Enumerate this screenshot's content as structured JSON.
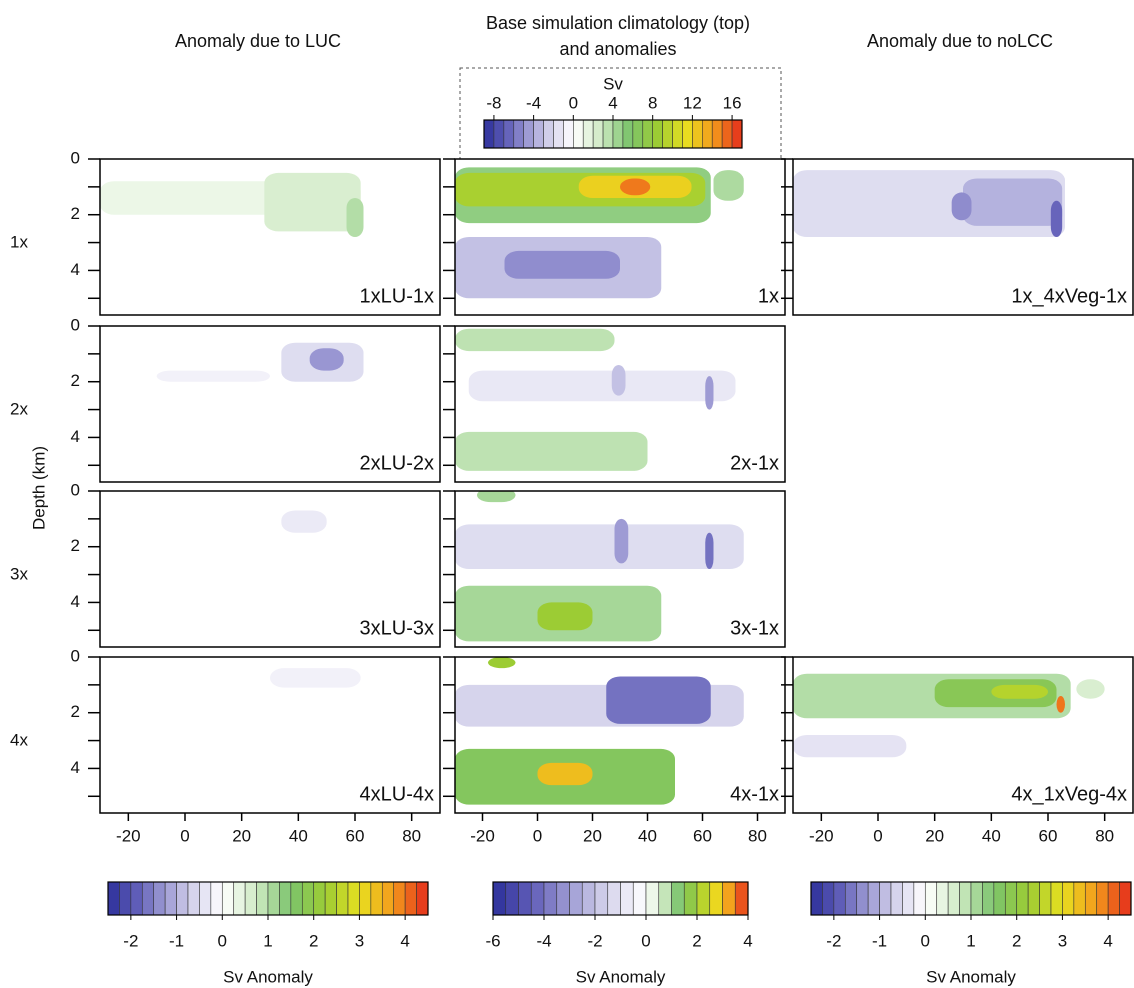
{
  "chart_data": {
    "type": "contour",
    "column_titles": [
      "Anomaly due to LUC",
      "Base simulation climatology (top)",
      "and anomalies",
      "Anomaly due to noLCC"
    ],
    "row_labels": [
      "1x",
      "2x",
      "3x",
      "4x"
    ],
    "y_label": "Depth (km)",
    "xlim": [
      -30,
      90
    ],
    "xticks": [
      -20,
      0,
      20,
      40,
      60,
      80
    ],
    "ylim": [
      0,
      5.6
    ],
    "yticks": [
      0,
      2,
      4
    ],
    "yminor_ticks": [
      1,
      3,
      5
    ],
    "negative_colors": [
      "#ffffff",
      "#d6d4ec",
      "#9e9bd4",
      "#5f5db8",
      "#2c2f9a"
    ],
    "positive_colors": [
      "#ffffff",
      "#cfeac4",
      "#7cc46c",
      "#9ccc34",
      "#e8e020",
      "#f49a1c",
      "#e42a1c"
    ],
    "colorbars": [
      {
        "label": "Sv Anomaly",
        "lim": [
          -2.5,
          4.5
        ],
        "ticks": [
          -2,
          -1,
          0,
          1,
          2,
          3,
          4
        ],
        "step": 0.25
      },
      {
        "label": "Sv Anomaly",
        "lim": [
          -6,
          4
        ],
        "ticks": [
          -6,
          -4,
          -2,
          0,
          2,
          4
        ],
        "step": 0.5
      },
      {
        "label": "Sv Anomaly",
        "lim": [
          -2.5,
          4.5
        ],
        "ticks": [
          -2,
          -1,
          0,
          1,
          2,
          3,
          4
        ],
        "step": 0.25
      },
      {
        "label": "Sv",
        "lim": [
          -9,
          17
        ],
        "ticks": [
          -8,
          -4,
          0,
          4,
          8,
          12,
          16
        ],
        "step": 1
      }
    ],
    "panels": [
      {
        "label": "1xLU-1x",
        "column": 0,
        "row": 0,
        "scale": 0,
        "regions": [
          {
            "x": [
              -30,
              62
            ],
            "y": [
              0.8,
              2.0
            ],
            "value": 0.3
          },
          {
            "x": [
              28,
              62
            ],
            "y": [
              0.5,
              2.6
            ],
            "value": 0.6
          },
          {
            "x": [
              57,
              63
            ],
            "y": [
              1.4,
              2.8
            ],
            "value": 1
          }
        ]
      },
      {
        "label": "1x",
        "column": 1,
        "row": 0,
        "scale": 3,
        "regions": [
          {
            "x": [
              -30,
              63
            ],
            "y": [
              0.3,
              2.3
            ],
            "value": 5
          },
          {
            "x": [
              -30,
              61
            ],
            "y": [
              0.5,
              1.7
            ],
            "value": 9
          },
          {
            "x": [
              15,
              56
            ],
            "y": [
              0.6,
              1.4
            ],
            "value": 12
          },
          {
            "x": [
              30,
              41
            ],
            "y": [
              0.7,
              1.3
            ],
            "value": 15
          },
          {
            "x": [
              64,
              75
            ],
            "y": [
              0.4,
              1.5
            ],
            "value": 4
          },
          {
            "x": [
              -30,
              45
            ],
            "y": [
              2.8,
              5.0
            ],
            "value": -3
          },
          {
            "x": [
              -12,
              30
            ],
            "y": [
              3.3,
              4.3
            ],
            "value": -5
          }
        ]
      },
      {
        "label": "1x_4xVeg-1x",
        "column": 2,
        "row": 0,
        "scale": 2,
        "regions": [
          {
            "x": [
              -30,
              66
            ],
            "y": [
              0.4,
              2.8
            ],
            "value": -0.5
          },
          {
            "x": [
              30,
              65
            ],
            "y": [
              0.7,
              2.4
            ],
            "value": -1
          },
          {
            "x": [
              26,
              33
            ],
            "y": [
              1.2,
              2.2
            ],
            "value": -1.4
          },
          {
            "x": [
              61,
              65
            ],
            "y": [
              1.5,
              2.8
            ],
            "value": -1.8
          }
        ]
      },
      {
        "label": "2xLU-2x",
        "column": 0,
        "row": 1,
        "scale": 0,
        "regions": [
          {
            "x": [
              -10,
              30
            ],
            "y": [
              1.6,
              2.0
            ],
            "value": -0.2
          },
          {
            "x": [
              34,
              63
            ],
            "y": [
              0.6,
              2.0
            ],
            "value": -0.5
          },
          {
            "x": [
              44,
              56
            ],
            "y": [
              0.8,
              1.6
            ],
            "value": -1.3
          }
        ]
      },
      {
        "label": "2x-1x",
        "column": 1,
        "row": 1,
        "scale": 1,
        "regions": [
          {
            "x": [
              -30,
              28
            ],
            "y": [
              0.1,
              0.9
            ],
            "value": 0.8
          },
          {
            "x": [
              -25,
              72
            ],
            "y": [
              1.6,
              2.7
            ],
            "value": -0.8
          },
          {
            "x": [
              27,
              32
            ],
            "y": [
              1.4,
              2.5
            ],
            "value": -2
          },
          {
            "x": [
              61,
              64
            ],
            "y": [
              1.8,
              3.0
            ],
            "value": -3
          },
          {
            "x": [
              -30,
              40
            ],
            "y": [
              3.8,
              5.2
            ],
            "value": 0.8
          }
        ]
      },
      {
        "label": "3xLU-3x",
        "column": 0,
        "row": 2,
        "scale": 0,
        "regions": [
          {
            "x": [
              34,
              50
            ],
            "y": [
              0.7,
              1.5
            ],
            "value": -0.3
          }
        ]
      },
      {
        "label": "3x-1x",
        "column": 1,
        "row": 2,
        "scale": 1,
        "regions": [
          {
            "x": [
              -22,
              -8
            ],
            "y": [
              -0.1,
              0.4
            ],
            "value": 1
          },
          {
            "x": [
              -30,
              75
            ],
            "y": [
              1.2,
              2.8
            ],
            "value": -1.2
          },
          {
            "x": [
              28,
              33
            ],
            "y": [
              1.0,
              2.6
            ],
            "value": -3
          },
          {
            "x": [
              61,
              64
            ],
            "y": [
              1.5,
              2.8
            ],
            "value": -4
          },
          {
            "x": [
              -30,
              45
            ],
            "y": [
              3.4,
              5.4
            ],
            "value": 1
          },
          {
            "x": [
              0,
              20
            ],
            "y": [
              4.0,
              5.0
            ],
            "value": 2
          }
        ]
      },
      {
        "label": "4xLU-4x",
        "column": 0,
        "row": 3,
        "scale": 0,
        "regions": [
          {
            "x": [
              30,
              62
            ],
            "y": [
              0.4,
              1.1
            ],
            "value": -0.2
          }
        ]
      },
      {
        "label": "4x-1x",
        "column": 1,
        "row": 3,
        "scale": 1,
        "regions": [
          {
            "x": [
              -18,
              -8
            ],
            "y": [
              0.0,
              0.4
            ],
            "value": 2
          },
          {
            "x": [
              -30,
              75
            ],
            "y": [
              1.0,
              2.5
            ],
            "value": -1.5
          },
          {
            "x": [
              25,
              63
            ],
            "y": [
              0.7,
              2.4
            ],
            "value": -4
          },
          {
            "x": [
              -30,
              50
            ],
            "y": [
              3.3,
              5.3
            ],
            "value": 1.5
          },
          {
            "x": [
              0,
              20
            ],
            "y": [
              3.8,
              4.6
            ],
            "value": 3
          }
        ]
      },
      {
        "label": "4x_1xVeg-4x",
        "column": 2,
        "row": 3,
        "scale": 2,
        "regions": [
          {
            "x": [
              -30,
              68
            ],
            "y": [
              0.6,
              2.2
            ],
            "value": 1
          },
          {
            "x": [
              20,
              63
            ],
            "y": [
              0.8,
              1.8
            ],
            "value": 1.8
          },
          {
            "x": [
              40,
              60
            ],
            "y": [
              1.0,
              1.5
            ],
            "value": 2.5
          },
          {
            "x": [
              63,
              66
            ],
            "y": [
              1.4,
              2.0
            ],
            "value": 4
          },
          {
            "x": [
              -30,
              10
            ],
            "y": [
              2.8,
              3.6
            ],
            "value": -0.4
          },
          {
            "x": [
              70,
              80
            ],
            "y": [
              0.8,
              1.5
            ],
            "value": 0.6
          }
        ]
      }
    ]
  }
}
